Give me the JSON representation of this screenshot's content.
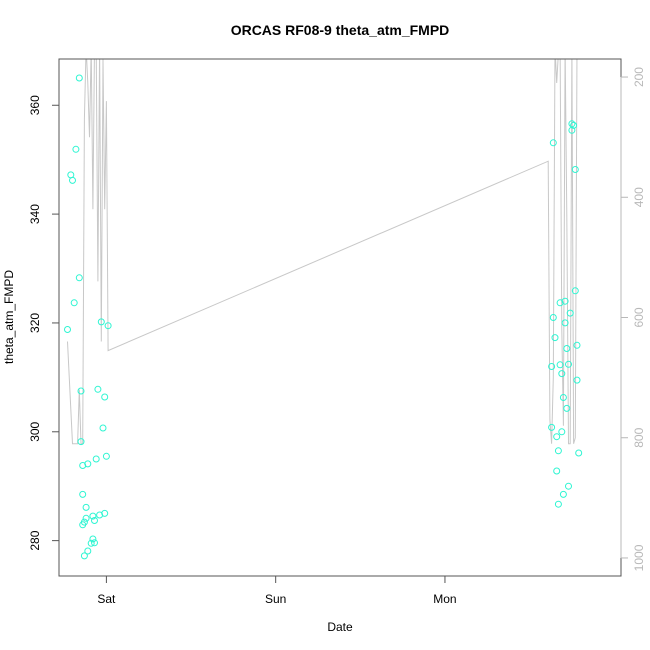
{
  "chart_data": {
    "type": "scatter",
    "title": "ORCAS RF08-9 theta_atm_FMPD",
    "xlabel": "Date",
    "ylabel": "theta_atm_FMPD",
    "x_unit": "days since Fri 00:00",
    "xlim": [
      0.72,
      4.04
    ],
    "ylim": [
      273.5,
      368.5
    ],
    "y2lim": [
      1030,
      170
    ],
    "x_ticks": [
      {
        "value": 1.0,
        "label": "Sat"
      },
      {
        "value": 2.0,
        "label": "Sun"
      },
      {
        "value": 3.0,
        "label": "Mon"
      }
    ],
    "y_ticks": [
      280,
      300,
      320,
      340,
      360
    ],
    "y2_ticks": [
      200,
      400,
      600,
      800,
      1000
    ],
    "grid": false,
    "colors": {
      "points": "#2ef5d2",
      "line": "#c8c8c8",
      "axis": "#555555",
      "right_axis": "#b8b8b8"
    },
    "series": [
      {
        "axis": "left",
        "style": "points",
        "points": [
          [
            0.77,
            318.8
          ],
          [
            0.79,
            347.2
          ],
          [
            0.8,
            346.2
          ],
          [
            0.81,
            323.7
          ],
          [
            0.82,
            351.9
          ],
          [
            0.84,
            365.0
          ],
          [
            0.84,
            328.3
          ],
          [
            0.85,
            307.5
          ],
          [
            0.85,
            298.2
          ],
          [
            0.86,
            293.8
          ],
          [
            0.86,
            288.5
          ],
          [
            0.86,
            282.9
          ],
          [
            0.87,
            283.4
          ],
          [
            0.87,
            277.2
          ],
          [
            0.88,
            284.1
          ],
          [
            0.88,
            286.1
          ],
          [
            0.89,
            278.1
          ],
          [
            0.89,
            294.1
          ],
          [
            0.91,
            279.5
          ],
          [
            0.92,
            280.3
          ],
          [
            0.92,
            284.5
          ],
          [
            0.93,
            279.6
          ],
          [
            0.93,
            283.7
          ],
          [
            0.94,
            295.0
          ],
          [
            0.95,
            307.8
          ],
          [
            0.96,
            284.7
          ],
          [
            0.97,
            320.2
          ],
          [
            0.98,
            300.7
          ],
          [
            0.99,
            285.0
          ],
          [
            0.99,
            306.4
          ],
          [
            1.0,
            295.5
          ],
          [
            1.01,
            319.5
          ],
          [
            3.63,
            300.8
          ],
          [
            3.63,
            312.0
          ],
          [
            3.64,
            321.0
          ],
          [
            3.64,
            353.1
          ],
          [
            3.65,
            317.3
          ],
          [
            3.66,
            299.1
          ],
          [
            3.66,
            292.8
          ],
          [
            3.67,
            286.7
          ],
          [
            3.67,
            296.5
          ],
          [
            3.68,
            312.3
          ],
          [
            3.68,
            323.7
          ],
          [
            3.69,
            310.7
          ],
          [
            3.69,
            300.0
          ],
          [
            3.7,
            288.5
          ],
          [
            3.7,
            306.3
          ],
          [
            3.71,
            320.0
          ],
          [
            3.71,
            324.0
          ],
          [
            3.72,
            315.3
          ],
          [
            3.72,
            304.3
          ],
          [
            3.73,
            290.0
          ],
          [
            3.73,
            312.4
          ],
          [
            3.74,
            321.8
          ],
          [
            3.75,
            355.4
          ],
          [
            3.75,
            356.6
          ],
          [
            3.76,
            356.3
          ],
          [
            3.77,
            348.2
          ],
          [
            3.77,
            325.9
          ],
          [
            3.78,
            315.9
          ],
          [
            3.78,
            309.5
          ],
          [
            3.79,
            296.1
          ]
        ]
      },
      {
        "axis": "right",
        "style": "line",
        "points": [
          [
            0.77,
            640
          ],
          [
            0.8,
            810
          ],
          [
            0.83,
            810
          ],
          [
            0.84,
            720
          ],
          [
            0.85,
            810
          ],
          [
            0.86,
            810
          ],
          [
            0.87,
            270
          ],
          [
            0.88,
            150
          ],
          [
            0.89,
            210
          ],
          [
            0.9,
            300
          ],
          [
            0.91,
            150
          ],
          [
            0.92,
            420
          ],
          [
            0.93,
            150
          ],
          [
            0.94,
            150
          ],
          [
            0.95,
            540
          ],
          [
            0.96,
            150
          ],
          [
            0.97,
            640
          ],
          [
            0.98,
            170
          ],
          [
            0.99,
            420
          ],
          [
            1.0,
            240
          ],
          [
            1.01,
            655
          ],
          [
            3.61,
            340
          ],
          [
            3.62,
            770
          ],
          [
            3.63,
            810
          ],
          [
            3.64,
            700
          ],
          [
            3.65,
            150
          ],
          [
            3.66,
            210
          ],
          [
            3.67,
            160
          ],
          [
            3.68,
            150
          ],
          [
            3.69,
            620
          ],
          [
            3.7,
            780
          ],
          [
            3.71,
            150
          ],
          [
            3.72,
            430
          ],
          [
            3.73,
            810
          ],
          [
            3.74,
            810
          ],
          [
            3.75,
            150
          ],
          [
            3.76,
            810
          ],
          [
            3.77,
            800
          ],
          [
            3.78,
            150
          ]
        ]
      }
    ]
  }
}
